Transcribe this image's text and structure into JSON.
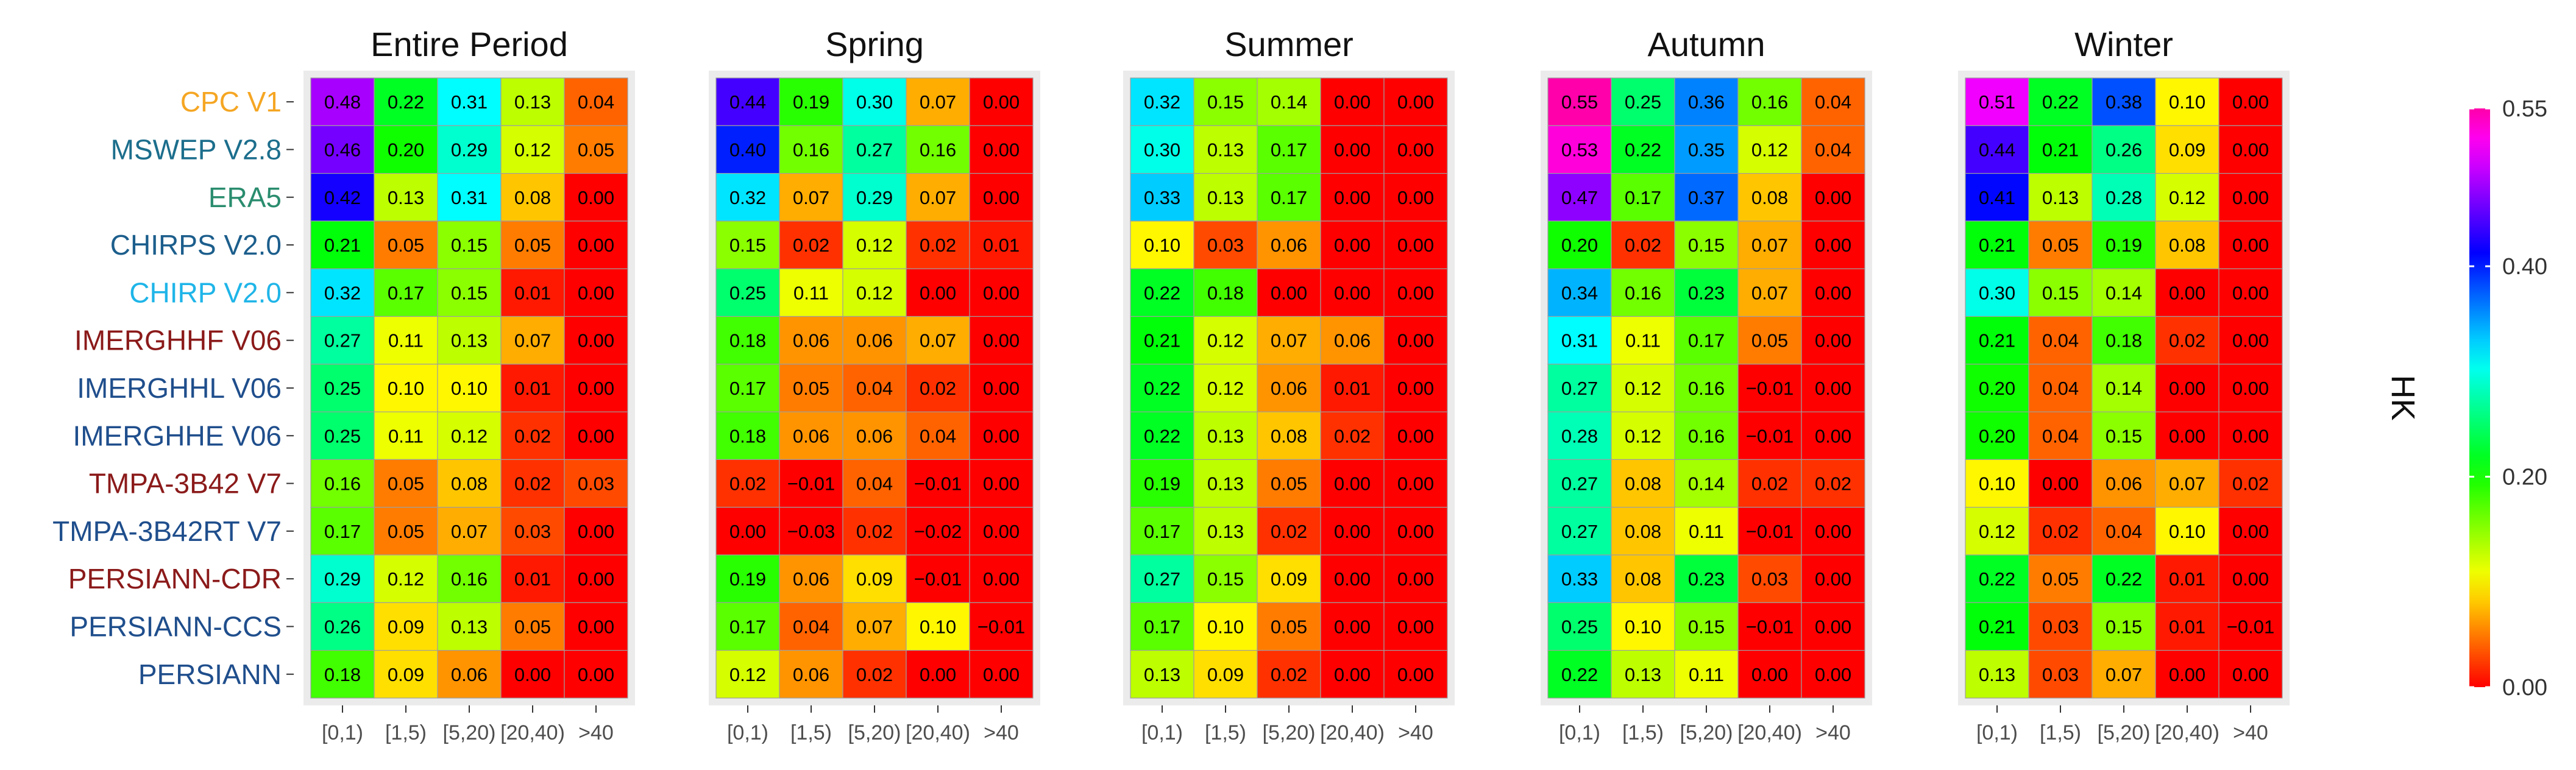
{
  "chart_data": {
    "type": "heatmap",
    "legend": {
      "title": "HK",
      "min": 0.0,
      "max": 0.55,
      "ticks": [
        "0.00",
        "0.20",
        "0.40",
        "0.55"
      ],
      "tick_values": [
        0.0,
        0.2,
        0.4,
        0.55
      ],
      "placement": "right"
    },
    "columns": [
      "[0,1)",
      "[1,5)",
      "[5,20)",
      "[20,40)",
      ">40"
    ],
    "rows": [
      {
        "label": "CPC V1",
        "color": "#F5A623"
      },
      {
        "label": "MSWEP V2.8",
        "color": "#1C6E8C"
      },
      {
        "label": "ERA5",
        "color": "#2A8C6E"
      },
      {
        "label": "CHIRPS V2.0",
        "color": "#1C5E8C"
      },
      {
        "label": "CHIRP V2.0",
        "color": "#1FB5E8"
      },
      {
        "label": "IMERGHHF V06",
        "color": "#8B1A1A"
      },
      {
        "label": "IMERGHHL V06",
        "color": "#1F4E8C"
      },
      {
        "label": "IMERGHHE V06",
        "color": "#1F4E8C"
      },
      {
        "label": "TMPA-3B42 V7",
        "color": "#8B1A1A"
      },
      {
        "label": "TMPA-3B42RT V7",
        "color": "#1F4E8C"
      },
      {
        "label": "PERSIANN-CDR",
        "color": "#8B1A1A"
      },
      {
        "label": "PERSIANN-CCS",
        "color": "#1F4E8C"
      },
      {
        "label": "PERSIANN",
        "color": "#1F4E8C"
      }
    ],
    "panels": [
      {
        "title": "Entire Period",
        "values": [
          [
            "0.48",
            "0.22",
            "0.31",
            "0.13",
            "0.04"
          ],
          [
            "0.46",
            "0.20",
            "0.29",
            "0.12",
            "0.05"
          ],
          [
            "0.42",
            "0.13",
            "0.31",
            "0.08",
            "0.00"
          ],
          [
            "0.21",
            "0.05",
            "0.15",
            "0.05",
            "0.00"
          ],
          [
            "0.32",
            "0.17",
            "0.15",
            "0.01",
            "0.00"
          ],
          [
            "0.27",
            "0.11",
            "0.13",
            "0.07",
            "0.00"
          ],
          [
            "0.25",
            "0.10",
            "0.10",
            "0.01",
            "0.00"
          ],
          [
            "0.25",
            "0.11",
            "0.12",
            "0.02",
            "0.00"
          ],
          [
            "0.16",
            "0.05",
            "0.08",
            "0.02",
            "0.03"
          ],
          [
            "0.17",
            "0.05",
            "0.07",
            "0.03",
            "0.00"
          ],
          [
            "0.29",
            "0.12",
            "0.16",
            "0.01",
            "0.00"
          ],
          [
            "0.26",
            "0.09",
            "0.13",
            "0.05",
            "0.00"
          ],
          [
            "0.18",
            "0.09",
            "0.06",
            "0.00",
            "0.00"
          ]
        ]
      },
      {
        "title": "Spring",
        "values": [
          [
            "0.44",
            "0.19",
            "0.30",
            "0.07",
            "0.00"
          ],
          [
            "0.40",
            "0.16",
            "0.27",
            "0.16",
            "0.00"
          ],
          [
            "0.32",
            "0.07",
            "0.29",
            "0.07",
            "0.00"
          ],
          [
            "0.15",
            "0.02",
            "0.12",
            "0.02",
            "0.01"
          ],
          [
            "0.25",
            "0.11",
            "0.12",
            "0.00",
            "0.00"
          ],
          [
            "0.18",
            "0.06",
            "0.06",
            "0.07",
            "0.00"
          ],
          [
            "0.17",
            "0.05",
            "0.04",
            "0.02",
            "0.00"
          ],
          [
            "0.18",
            "0.06",
            "0.06",
            "0.04",
            "0.00"
          ],
          [
            "0.02",
            "−0.01",
            "0.04",
            "−0.01",
            "0.00"
          ],
          [
            "0.00",
            "−0.03",
            "0.02",
            "−0.02",
            "0.00"
          ],
          [
            "0.19",
            "0.06",
            "0.09",
            "−0.01",
            "0.00"
          ],
          [
            "0.17",
            "0.04",
            "0.07",
            "0.10",
            "−0.01"
          ],
          [
            "0.12",
            "0.06",
            "0.02",
            "0.00",
            "0.00"
          ]
        ]
      },
      {
        "title": "Summer",
        "values": [
          [
            "0.32",
            "0.15",
            "0.14",
            "0.00",
            "0.00"
          ],
          [
            "0.30",
            "0.13",
            "0.17",
            "0.00",
            "0.00"
          ],
          [
            "0.33",
            "0.13",
            "0.17",
            "0.00",
            "0.00"
          ],
          [
            "0.10",
            "0.03",
            "0.06",
            "0.00",
            "0.00"
          ],
          [
            "0.22",
            "0.18",
            "0.00",
            "0.00",
            "0.00"
          ],
          [
            "0.21",
            "0.12",
            "0.07",
            "0.06",
            "0.00"
          ],
          [
            "0.22",
            "0.12",
            "0.06",
            "0.01",
            "0.00"
          ],
          [
            "0.22",
            "0.13",
            "0.08",
            "0.02",
            "0.00"
          ],
          [
            "0.19",
            "0.13",
            "0.05",
            "0.00",
            "0.00"
          ],
          [
            "0.17",
            "0.13",
            "0.02",
            "0.00",
            "0.00"
          ],
          [
            "0.27",
            "0.15",
            "0.09",
            "0.00",
            "0.00"
          ],
          [
            "0.17",
            "0.10",
            "0.05",
            "0.00",
            "0.00"
          ],
          [
            "0.13",
            "0.09",
            "0.02",
            "0.00",
            "0.00"
          ]
        ]
      },
      {
        "title": "Autumn",
        "values": [
          [
            "0.55",
            "0.25",
            "0.36",
            "0.16",
            "0.04"
          ],
          [
            "0.53",
            "0.22",
            "0.35",
            "0.12",
            "0.04"
          ],
          [
            "0.47",
            "0.17",
            "0.37",
            "0.08",
            "0.00"
          ],
          [
            "0.20",
            "0.02",
            "0.15",
            "0.07",
            "0.00"
          ],
          [
            "0.34",
            "0.16",
            "0.23",
            "0.07",
            "0.00"
          ],
          [
            "0.31",
            "0.11",
            "0.17",
            "0.05",
            "0.00"
          ],
          [
            "0.27",
            "0.12",
            "0.16",
            "−0.01",
            "0.00"
          ],
          [
            "0.28",
            "0.12",
            "0.16",
            "−0.01",
            "0.00"
          ],
          [
            "0.27",
            "0.08",
            "0.14",
            "0.02",
            "0.02"
          ],
          [
            "0.27",
            "0.08",
            "0.11",
            "−0.01",
            "0.00"
          ],
          [
            "0.33",
            "0.08",
            "0.23",
            "0.03",
            "0.00"
          ],
          [
            "0.25",
            "0.10",
            "0.15",
            "−0.01",
            "0.00"
          ],
          [
            "0.22",
            "0.13",
            "0.11",
            "0.00",
            "0.00"
          ]
        ]
      },
      {
        "title": "Winter",
        "values": [
          [
            "0.51",
            "0.22",
            "0.38",
            "0.10",
            "0.00"
          ],
          [
            "0.44",
            "0.21",
            "0.26",
            "0.09",
            "0.00"
          ],
          [
            "0.41",
            "0.13",
            "0.28",
            "0.12",
            "0.00"
          ],
          [
            "0.21",
            "0.05",
            "0.19",
            "0.08",
            "0.00"
          ],
          [
            "0.30",
            "0.15",
            "0.14",
            "0.00",
            "0.00"
          ],
          [
            "0.21",
            "0.04",
            "0.18",
            "0.02",
            "0.00"
          ],
          [
            "0.20",
            "0.04",
            "0.14",
            "0.00",
            "0.00"
          ],
          [
            "0.20",
            "0.04",
            "0.15",
            "0.00",
            "0.00"
          ],
          [
            "0.10",
            "0.00",
            "0.06",
            "0.07",
            "0.02"
          ],
          [
            "0.12",
            "0.02",
            "0.04",
            "0.10",
            "0.00"
          ],
          [
            "0.22",
            "0.05",
            "0.22",
            "0.01",
            "0.00"
          ],
          [
            "0.21",
            "0.03",
            "0.15",
            "0.01",
            "−0.01"
          ],
          [
            "0.13",
            "0.03",
            "0.07",
            "0.00",
            "0.00"
          ]
        ]
      }
    ]
  }
}
